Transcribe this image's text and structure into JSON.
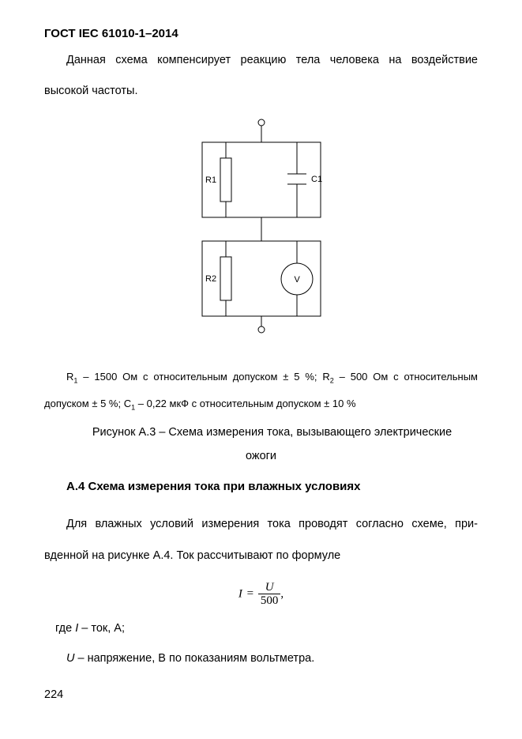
{
  "header": "ГОСТ IEC 61010-1–2014",
  "para1": "Данная схема компенсирует реакцию тела человека на воздействие высокой частоты.",
  "diagram": {
    "labels": {
      "R1": "R1",
      "R2": "R2",
      "C1": "C1",
      "V": "V"
    },
    "stroke": "#000000",
    "stroke_width": 1
  },
  "caption_legend_html": "R<sub>1</sub> – 1500 Ом с относительным допуском ± 5 %; R<sub>2</sub> – 500 Ом с относительным допуском ± 5 %; C<sub>1</sub> – 0,22 мкФ с относительным допуском ± 10 %",
  "fig_caption_line1": "Рисунок А.3 – Схема измерения тока, вызывающего электрические",
  "fig_caption_line2": "ожоги",
  "section_heading": "A.4 Схема измерения тока при влажных условиях",
  "para2": "Для влажных условий измерения тока проводят согласно схеме, при­вденной на рисунке А.4. Ток рассчитывают по формуле",
  "formula": {
    "lhs": "I",
    "eq": "=",
    "num": "U",
    "den": "500",
    "tail": ","
  },
  "where1_html": "где <span class=\"italic\">I</span> – ток, А;",
  "where2_html": "<span class=\"italic\">U</span> – напряжение, В по показаниям вольтметра.",
  "page_number": "224",
  "colors": {
    "text": "#000000",
    "background": "#ffffff"
  }
}
